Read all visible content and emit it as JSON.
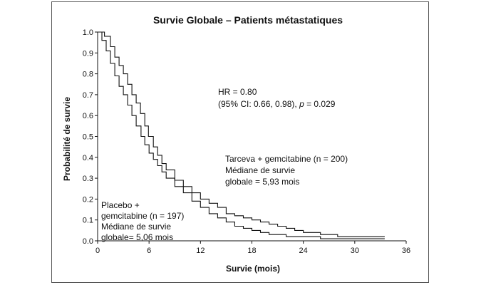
{
  "chart_data": {
    "type": "line",
    "title": "Survie Globale – Patients métastatiques",
    "xlabel": "Survie (mois)",
    "ylabel": "Probabilité de survie",
    "xlim": [
      0,
      36
    ],
    "ylim": [
      0,
      1.0
    ],
    "x_ticks": [
      "0",
      "6",
      "12",
      "18",
      "24",
      "30",
      "36"
    ],
    "y_ticks": [
      "0.0",
      "0.1",
      "0.2",
      "0.3",
      "0.4",
      "0.5",
      "0.6",
      "0.7",
      "0.8",
      "0.9",
      "1.0"
    ],
    "grid": false,
    "series": [
      {
        "name": "Tarceva + gemcitabine (n = 200)",
        "step": true,
        "x": [
          0,
          0.8,
          1.5,
          2,
          2.5,
          3,
          3.5,
          4,
          4.5,
          5,
          5.5,
          5.93,
          6.5,
          7,
          7.5,
          8,
          9,
          10,
          11,
          12,
          13,
          14,
          15,
          16,
          17,
          18,
          19,
          20,
          21,
          22,
          23,
          24,
          25,
          26,
          27,
          28,
          29,
          30,
          31,
          32,
          33.5
        ],
        "y": [
          1.0,
          0.98,
          0.93,
          0.88,
          0.84,
          0.8,
          0.75,
          0.7,
          0.66,
          0.61,
          0.55,
          0.5,
          0.45,
          0.41,
          0.37,
          0.34,
          0.29,
          0.26,
          0.23,
          0.2,
          0.18,
          0.16,
          0.13,
          0.12,
          0.11,
          0.1,
          0.09,
          0.08,
          0.07,
          0.06,
          0.05,
          0.04,
          0.04,
          0.03,
          0.03,
          0.02,
          0.02,
          0.02,
          0.02,
          0.02,
          0.02
        ]
      },
      {
        "name": "Placebo + gemcitabine (n = 197)",
        "step": true,
        "x": [
          0,
          0.5,
          1,
          1.5,
          2,
          2.5,
          3,
          3.5,
          4,
          4.5,
          5.06,
          5.5,
          6,
          6.5,
          7,
          7.5,
          8,
          9,
          10,
          11,
          12,
          13,
          14,
          15,
          16,
          17,
          18,
          19,
          20,
          21,
          22,
          24,
          26,
          28,
          29,
          30,
          31,
          32,
          33.5
        ],
        "y": [
          1.0,
          0.96,
          0.91,
          0.85,
          0.79,
          0.74,
          0.7,
          0.65,
          0.6,
          0.55,
          0.5,
          0.46,
          0.42,
          0.39,
          0.36,
          0.33,
          0.3,
          0.26,
          0.23,
          0.19,
          0.16,
          0.13,
          0.11,
          0.09,
          0.07,
          0.06,
          0.05,
          0.04,
          0.03,
          0.03,
          0.02,
          0.02,
          0.01,
          0.01,
          0.01,
          0.01,
          0.01,
          0.01,
          0.01
        ]
      }
    ],
    "annotations": {
      "hr_line1": "HR = 0.80",
      "hr_line2_prefix": "(95% CI: 0.66, 0.98), ",
      "hr_line2_p": "p",
      "hr_line2_suffix": " = 0.029",
      "tarceva_line1": "Tarceva + gemcitabine (n = 200)",
      "tarceva_line2": "Médiane de survie",
      "tarceva_line3": "globale = 5,93 mois",
      "placebo_line1": "Placebo +",
      "placebo_line2": "gemcitabine (n = 197)",
      "placebo_line3": "Médiane de survie",
      "placebo_line4": "globale= 5,06 mois"
    }
  }
}
